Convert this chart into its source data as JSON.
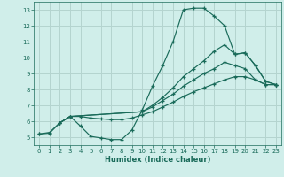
{
  "xlabel": "Humidex (Indice chaleur)",
  "xlim": [
    -0.5,
    23.5
  ],
  "ylim": [
    4.5,
    13.5
  ],
  "xticks": [
    0,
    1,
    2,
    3,
    4,
    5,
    6,
    7,
    8,
    9,
    10,
    11,
    12,
    13,
    14,
    15,
    16,
    17,
    18,
    19,
    20,
    21,
    22,
    23
  ],
  "yticks": [
    5,
    6,
    7,
    8,
    9,
    10,
    11,
    12,
    13
  ],
  "background_color": "#d0eeea",
  "grid_color": "#b4d4cf",
  "line_color": "#1a6b5a",
  "lines": [
    {
      "x": [
        0,
        1,
        2,
        3,
        4,
        5,
        6,
        7,
        8,
        9,
        10,
        11,
        12,
        13,
        14,
        15,
        16,
        17,
        18,
        19,
        20,
        21,
        22,
        23
      ],
      "y": [
        5.2,
        5.3,
        5.9,
        6.3,
        5.7,
        5.05,
        4.95,
        4.85,
        4.85,
        5.45,
        6.7,
        8.2,
        9.5,
        11.0,
        13.0,
        13.1,
        13.1,
        12.6,
        12.0,
        10.2,
        10.3,
        9.5,
        8.5,
        8.3
      ]
    },
    {
      "x": [
        2,
        3,
        10,
        11,
        12,
        13,
        14,
        15,
        16,
        17,
        18,
        19,
        20,
        21,
        22,
        23
      ],
      "y": [
        5.9,
        6.3,
        6.6,
        7.0,
        7.5,
        8.1,
        8.8,
        9.3,
        9.8,
        10.4,
        10.8,
        10.2,
        10.3,
        9.5,
        8.5,
        8.3
      ]
    },
    {
      "x": [
        2,
        3,
        10,
        11,
        12,
        13,
        14,
        15,
        16,
        17,
        18,
        19,
        20,
        21,
        22,
        23
      ],
      "y": [
        5.9,
        6.3,
        6.6,
        6.9,
        7.3,
        7.7,
        8.2,
        8.6,
        9.0,
        9.3,
        9.7,
        9.5,
        9.3,
        8.6,
        8.3,
        8.3
      ]
    },
    {
      "x": [
        0,
        1,
        2,
        3,
        4,
        5,
        6,
        7,
        8,
        9,
        10,
        11,
        12,
        13,
        14,
        15,
        16,
        17,
        18,
        19,
        20,
        21,
        22,
        23
      ],
      "y": [
        5.2,
        5.25,
        5.9,
        6.3,
        6.3,
        6.2,
        6.15,
        6.1,
        6.1,
        6.2,
        6.4,
        6.6,
        6.9,
        7.2,
        7.55,
        7.85,
        8.1,
        8.35,
        8.6,
        8.8,
        8.8,
        8.6,
        8.3,
        8.3
      ]
    }
  ]
}
